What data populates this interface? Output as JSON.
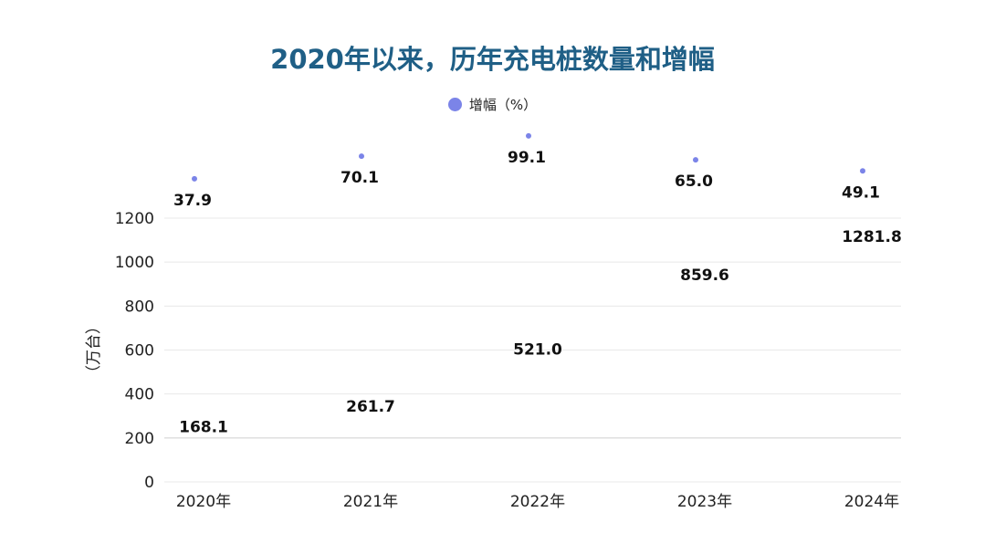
{
  "chart_data": {
    "type": "bar",
    "title": "2020年以来，历年充电桩数量和增幅",
    "categories": [
      "2020年",
      "2021年",
      "2022年",
      "2023年",
      "2024年"
    ],
    "ylabel": "（万台）",
    "ylim": [
      0,
      1200
    ],
    "yticks": [
      0,
      200,
      400,
      600,
      800,
      1000,
      1200
    ],
    "grid": true,
    "legend_position": "top",
    "series": [
      {
        "values": [
          168.1,
          261.7,
          521.0,
          859.6,
          1281.8
        ],
        "labels": [
          "168.1",
          "261.7",
          "521.0",
          "859.6",
          "1281.8"
        ]
      },
      {
        "name": "增幅（%）",
        "type": "scatter",
        "axis": "hidden-secondary",
        "values": [
          37.9,
          70.1,
          99.1,
          65.0,
          49.1
        ],
        "labels": [
          "37.9",
          "70.1",
          "99.1",
          "65.0",
          "49.1"
        ],
        "color": "#7b84e8"
      }
    ]
  }
}
